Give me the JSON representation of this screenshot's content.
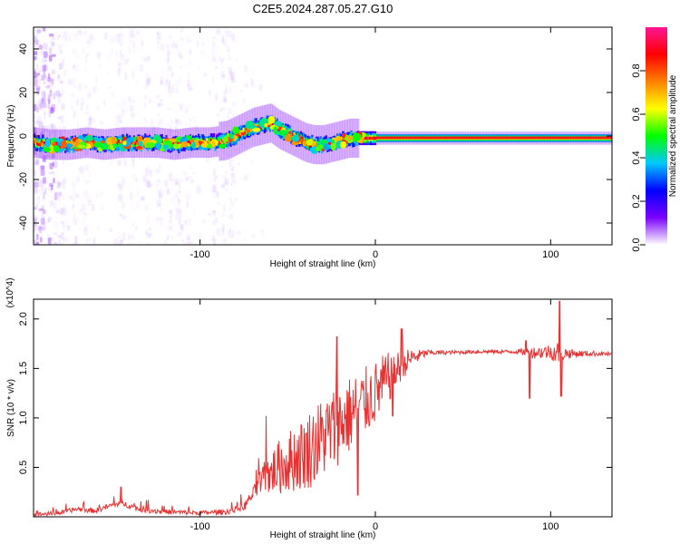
{
  "figure": {
    "title": "C2E5.2024.287.05.27.G10"
  },
  "chart_data": [
    {
      "type": "heatmap",
      "name": "spectrogram",
      "xlabel": "Height of straight line (km)",
      "ylabel": "Frequency (Hz)",
      "xlim": [
        -195,
        135
      ],
      "ylim": [
        -50,
        50
      ],
      "xticks": [
        -100,
        0,
        100
      ],
      "yticks": [
        -40,
        -20,
        0,
        20,
        40
      ],
      "colorbar": {
        "label": "Normalized spectral amplitude",
        "range": [
          0,
          1
        ],
        "ticks": [
          "0.0",
          "0.2",
          "0.4",
          "0.6",
          "0.8"
        ],
        "colors": [
          "#ffffff",
          "#7a00ff",
          "#0000ff",
          "#00c8ff",
          "#00ff00",
          "#ffff00",
          "#ff8000",
          "#ff0000",
          "#ff1493"
        ]
      },
      "ridge": {
        "x": [
          -195,
          -185,
          -175,
          -165,
          -155,
          -145,
          -135,
          -125,
          -115,
          -105,
          -95,
          -85,
          -80,
          -75,
          -70,
          -65,
          -60,
          -55,
          -50,
          -45,
          -40,
          -35,
          -30,
          -25,
          -20,
          -15,
          -10,
          -5,
          0,
          10,
          20,
          30,
          40,
          50,
          60,
          70,
          80,
          90,
          100,
          110,
          120,
          135
        ],
        "y": [
          -3,
          -4,
          -4,
          -3,
          -4,
          -3,
          -3,
          -3,
          -4,
          -3,
          -3,
          -2,
          0,
          2,
          4,
          5,
          6,
          3,
          1,
          -1,
          -3,
          -4,
          -4,
          -3,
          -2,
          -1,
          -1,
          -1,
          -1,
          -1,
          -1,
          -1,
          -1,
          -1,
          -1,
          -1,
          -1,
          -1,
          -1,
          -1,
          -1,
          -1
        ]
      }
    },
    {
      "type": "line",
      "name": "snr",
      "xlabel": "Height of straight line (km)",
      "ylabel": "SNR (10 * v/v)",
      "yscale_note": "(x10^4)",
      "xlim": [
        -195,
        135
      ],
      "ylim": [
        0.0,
        2.2
      ],
      "xticks": [
        -100,
        0,
        100
      ],
      "yticks": [
        0.5,
        1.0,
        1.5,
        2.0
      ],
      "line_color": "#e83232",
      "envelope": {
        "x": [
          -195,
          -180,
          -170,
          -160,
          -150,
          -145,
          -135,
          -120,
          -100,
          -85,
          -75,
          -65,
          -60,
          -50,
          -40,
          -30,
          -20,
          -10,
          0,
          10,
          20,
          30,
          40,
          60,
          80,
          90,
          100,
          110,
          120,
          130,
          135
        ],
        "y": [
          0.02,
          0.04,
          0.08,
          0.06,
          0.12,
          0.14,
          0.08,
          0.05,
          0.04,
          0.05,
          0.1,
          0.35,
          0.45,
          0.55,
          0.65,
          0.8,
          0.95,
          1.1,
          1.25,
          1.45,
          1.6,
          1.66,
          1.66,
          1.67,
          1.67,
          1.66,
          1.67,
          1.65,
          1.65,
          1.65,
          1.64
        ]
      },
      "noise_amplitude": {
        "x": [
          -195,
          -130,
          -100,
          -80,
          -70,
          -65,
          -55,
          -45,
          -35,
          -25,
          -15,
          -5,
          5,
          15,
          25,
          30,
          40,
          80,
          90,
          100,
          104,
          110,
          120,
          135
        ],
        "y": [
          0.02,
          0.03,
          0.02,
          0.03,
          0.06,
          0.15,
          0.28,
          0.35,
          0.42,
          0.42,
          0.4,
          0.35,
          0.3,
          0.15,
          0.06,
          0.03,
          0.02,
          0.02,
          0.06,
          0.08,
          0.12,
          0.05,
          0.03,
          0.02
        ]
      },
      "spikes": [
        {
          "x": 105,
          "y": 2.18
        },
        {
          "x": 106,
          "y": 1.22
        },
        {
          "x": 88,
          "y": 1.2
        },
        {
          "x": 86,
          "y": 1.78
        },
        {
          "x": 15,
          "y": 1.9
        },
        {
          "x": 10,
          "y": 1.02
        },
        {
          "x": -22,
          "y": 1.82
        },
        {
          "x": -10,
          "y": 0.22
        },
        {
          "x": -145,
          "y": 0.3
        }
      ]
    }
  ]
}
